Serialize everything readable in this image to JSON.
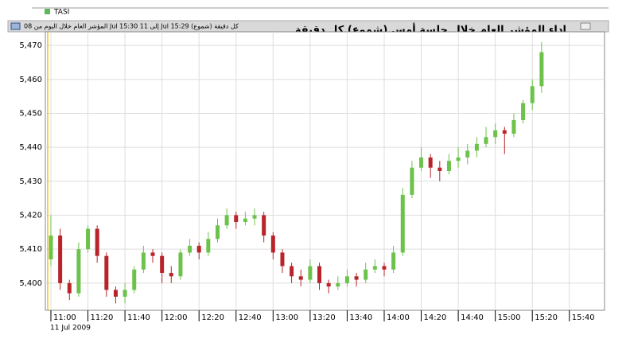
{
  "chart_data": {
    "type": "candlestick",
    "title": "اداء المؤشر العام خلال جلسة أمس (شموع) كل دقيقة",
    "subtitle": "المؤشر العام خلال اليوم  من 08 Jul 15:30 إلى 11 Jul 15:29 (شموع) كل دقيقة",
    "date_label": "11 Jul 2009",
    "x": [
      "11:00",
      "11:05",
      "11:10",
      "11:15",
      "11:20",
      "11:25",
      "11:30",
      "11:35",
      "11:40",
      "11:45",
      "11:50",
      "11:55",
      "12:00",
      "12:05",
      "12:10",
      "12:15",
      "12:20",
      "12:25",
      "12:30",
      "12:35",
      "12:40",
      "12:45",
      "12:50",
      "12:55",
      "13:00",
      "13:05",
      "13:10",
      "13:15",
      "13:20",
      "13:25",
      "13:30",
      "13:35",
      "13:40",
      "13:45",
      "13:50",
      "13:55",
      "14:00",
      "14:05",
      "14:10",
      "14:15",
      "14:20",
      "14:25",
      "14:30",
      "14:35",
      "14:40",
      "14:45",
      "14:50",
      "14:55",
      "15:00",
      "15:05",
      "15:10",
      "15:15",
      "15:20",
      "15:25"
    ],
    "series": [
      {
        "name": "TASI",
        "color": "#5cb85c",
        "up_color": "#6cc24a",
        "down_color": "#b8242a",
        "open": [
          5407,
          5414,
          5400,
          5397,
          5410,
          5416,
          5408,
          5398,
          5396,
          5398,
          5404,
          5409,
          5408,
          5403,
          5402,
          5409,
          5411,
          5409,
          5413,
          5417,
          5420,
          5418,
          5419,
          5420,
          5414,
          5409,
          5405,
          5402,
          5401,
          5405,
          5400,
          5399,
          5400,
          5402,
          5401,
          5404,
          5405,
          5404,
          5409,
          5426,
          5434,
          5437,
          5434,
          5433,
          5436,
          5437,
          5439,
          5441,
          5443,
          5445,
          5444,
          5448,
          5453,
          5458
        ],
        "high": [
          5420,
          5416,
          5401,
          5412,
          5417,
          5417,
          5409,
          5399,
          5400,
          5405,
          5411,
          5410,
          5409,
          5405,
          5410,
          5413,
          5412,
          5415,
          5419,
          5422,
          5421,
          5421,
          5422,
          5421,
          5415,
          5410,
          5406,
          5404,
          5407,
          5406,
          5401,
          5402,
          5404,
          5403,
          5406,
          5407,
          5406,
          5411,
          5428,
          5436,
          5440,
          5438,
          5436,
          5438,
          5440,
          5441,
          5443,
          5446,
          5447,
          5446,
          5450,
          5454,
          5460,
          5471
        ],
        "low": [
          5405,
          5398,
          5395,
          5396,
          5409,
          5406,
          5396,
          5394,
          5394,
          5397,
          5403,
          5406,
          5400,
          5400,
          5401,
          5408,
          5407,
          5408,
          5412,
          5416,
          5416,
          5417,
          5417,
          5412,
          5407,
          5403,
          5400,
          5399,
          5400,
          5398,
          5397,
          5398,
          5399,
          5399,
          5400,
          5403,
          5402,
          5403,
          5408,
          5425,
          5433,
          5431,
          5430,
          5432,
          5434,
          5435,
          5437,
          5440,
          5441,
          5438,
          5443,
          5447,
          5451,
          5456
        ],
        "close": [
          5414,
          5400,
          5397,
          5410,
          5416,
          5408,
          5398,
          5396,
          5398,
          5404,
          5409,
          5408,
          5403,
          5402,
          5409,
          5411,
          5409,
          5413,
          5417,
          5420,
          5418,
          5419,
          5420,
          5414,
          5409,
          5405,
          5402,
          5401,
          5405,
          5400,
          5399,
          5400,
          5402,
          5401,
          5404,
          5405,
          5404,
          5409,
          5426,
          5434,
          5437,
          5434,
          5433,
          5436,
          5437,
          5439,
          5441,
          5443,
          5445,
          5444,
          5448,
          5453,
          5458,
          5468
        ]
      }
    ],
    "xlim": [
      "10:57",
      "15:59"
    ],
    "xticks": [
      "11:00",
      "11:20",
      "11:40",
      "12:00",
      "12:20",
      "12:40",
      "13:00",
      "13:20",
      "13:40",
      "14:00",
      "14:20",
      "14:40",
      "15:00",
      "15:20",
      "15:40"
    ],
    "ylim": [
      5392,
      5474
    ],
    "yticks": [
      {
        "value": 5400,
        "label": "5,400"
      },
      {
        "value": 5410,
        "label": "5,410"
      },
      {
        "value": 5420,
        "label": "5,420"
      },
      {
        "value": 5430,
        "label": "5,430"
      },
      {
        "value": 5440,
        "label": "5,440"
      },
      {
        "value": 5450,
        "label": "5,450"
      },
      {
        "value": 5460,
        "label": "5,460"
      },
      {
        "value": 5470,
        "label": "5,470"
      }
    ],
    "grid": true
  }
}
